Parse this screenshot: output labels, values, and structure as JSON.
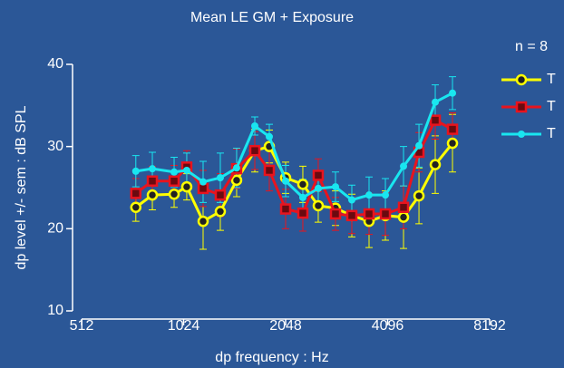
{
  "chart_data": {
    "type": "line",
    "title": "Mean LE GM + Exposure",
    "x_label": "dp frequency : Hz",
    "y_label": "dp level +/- sem : dB SPL",
    "annotation": "n = 8",
    "x": [
      740,
      828,
      960,
      1046,
      1169,
      1314,
      1468,
      1661,
      1833,
      2048,
      2302,
      2556,
      2874,
      3211,
      3610,
      4034,
      4563,
      5068,
      5661,
      6364
    ],
    "xscale": "log",
    "xlim": [
      512,
      8192
    ],
    "xticks": [
      512,
      1024,
      2048,
      4096,
      8192
    ],
    "ylim": [
      10,
      40
    ],
    "yticks": [
      10,
      20,
      30,
      40
    ],
    "grid": false,
    "legend": "right",
    "series": [
      {
        "name": "T",
        "color": "#ffff00",
        "marker": "circle",
        "values": [
          22.6,
          24.1,
          24.2,
          25.1,
          20.9,
          22.1,
          25.9,
          29.5,
          30.0,
          26.2,
          25.4,
          22.8,
          22.5,
          21.6,
          20.9,
          21.6,
          21.4,
          24.0,
          27.8,
          30.4
        ],
        "errors": [
          1.7,
          1.8,
          1.6,
          1.6,
          3.4,
          2.3,
          2.0,
          2.6,
          2.0,
          1.9,
          2.2,
          2.0,
          2.1,
          2.6,
          3.2,
          3.0,
          3.8,
          3.4,
          3.5,
          3.5
        ]
      },
      {
        "name": "T",
        "color": "#e8141e",
        "marker": "square",
        "values": [
          24.3,
          25.8,
          25.8,
          27.5,
          24.9,
          24.1,
          27.3,
          29.5,
          27.1,
          22.4,
          21.9,
          26.5,
          21.8,
          21.6,
          21.8,
          21.8,
          22.6,
          29.3,
          33.2,
          32.1
        ],
        "errors": [
          1.8,
          1.8,
          1.9,
          2.0,
          2.2,
          2.6,
          2.4,
          2.3,
          2.5,
          2.4,
          2.2,
          2.0,
          2.0,
          2.2,
          2.5,
          2.6,
          2.6,
          2.4,
          2.3,
          2.0
        ]
      },
      {
        "name": "T",
        "color": "#19e6f0",
        "marker": "dot",
        "values": [
          27.0,
          27.3,
          26.9,
          27.1,
          25.7,
          26.2,
          27.4,
          32.5,
          31.2,
          25.8,
          23.8,
          24.9,
          25.1,
          23.5,
          24.1,
          24.1,
          27.6,
          30.1,
          35.4,
          36.5
        ],
        "errors": [
          1.9,
          2.0,
          1.8,
          2.1,
          2.5,
          3.0,
          2.4,
          1.1,
          1.5,
          1.9,
          2.2,
          2.0,
          1.8,
          1.8,
          2.2,
          2.0,
          2.4,
          2.6,
          2.1,
          2.0
        ]
      }
    ]
  }
}
